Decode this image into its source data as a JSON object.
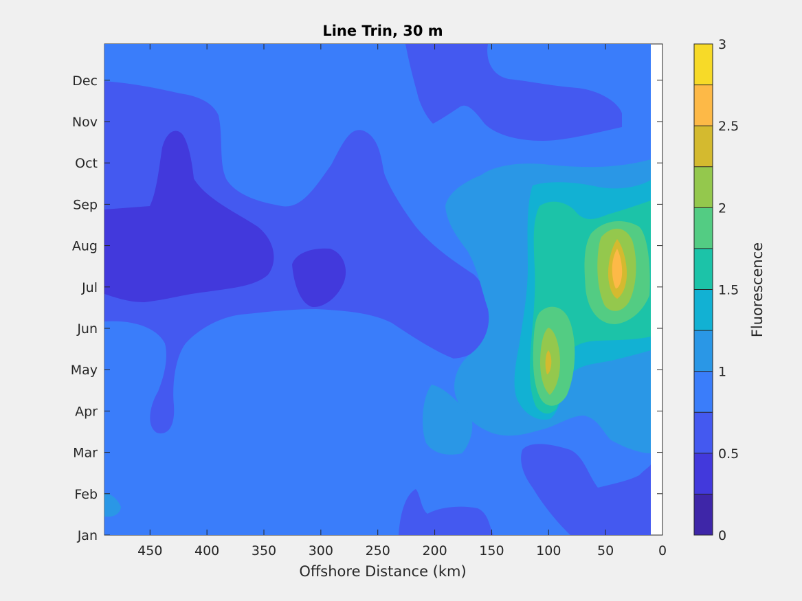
{
  "chart_data": {
    "type": "filled-contour",
    "title": "Line Trin, 30 m",
    "xlabel": "Offshore Distance (km)",
    "ylabel": "",
    "x_reversed": true,
    "xlim": [
      490,
      0
    ],
    "x_ticks": [
      450,
      400,
      350,
      300,
      250,
      200,
      150,
      100,
      50,
      0
    ],
    "y_ticks": [
      "Jan",
      "Feb",
      "Mar",
      "Apr",
      "May",
      "Jun",
      "Jul",
      "Aug",
      "Sep",
      "Oct",
      "Nov",
      "Dec"
    ],
    "colorbar": {
      "label": "Fluorescence",
      "range": [
        0,
        3
      ],
      "tick_values": [
        0,
        0.5,
        1,
        1.5,
        2,
        2.5,
        3
      ],
      "tick_labels": [
        "0",
        "0.5",
        "1",
        "1.5",
        "2",
        "2.5",
        "3"
      ],
      "levels": [
        0,
        0.25,
        0.5,
        0.75,
        1,
        1.25,
        1.5,
        1.75,
        2,
        2.25,
        2.5,
        2.75,
        3
      ],
      "colors": [
        "#3e26a8",
        "#4239dc",
        "#4459f0",
        "#3a7dfa",
        "#2a97e6",
        "#12b1d3",
        "#1cc3a8",
        "#53cc83",
        "#94c84d",
        "#d4ba2f",
        "#fdb947",
        "#f7da28"
      ]
    },
    "regions": [
      {
        "feature": "background",
        "level": 0.75
      },
      {
        "feature": "low_west_band",
        "level": 0.5
      },
      {
        "feature": "low_west_core",
        "level": 0.25
      },
      {
        "feature": "low_mid_core",
        "level": 0.25
      },
      {
        "feature": "low_northeast",
        "level": 0.5
      },
      {
        "feature": "low_south_mid",
        "level": 0.5
      },
      {
        "feature": "low_south_east",
        "level": 0.5
      },
      {
        "feature": "nearshore_bloom_1.0",
        "level": 1.0
      },
      {
        "feature": "nearshore_bloom_1.25",
        "level": 1.25
      },
      {
        "feature": "nearshore_bloom_1.5",
        "level": 1.5
      },
      {
        "feature": "peak_100km_may_1.75",
        "level": 1.75
      },
      {
        "feature": "peak_100km_may_2.0",
        "level": 2.0
      },
      {
        "feature": "peak_100km_may_2.25",
        "level": 2.25
      },
      {
        "feature": "peak_40km_jul_1.75",
        "level": 1.75
      },
      {
        "feature": "peak_40km_jul_2.0",
        "level": 2.0
      },
      {
        "feature": "peak_40km_jul_2.25",
        "level": 2.25
      },
      {
        "feature": "peak_40km_jul_2.5",
        "level": 2.5
      },
      {
        "feature": "patch_170km_apr",
        "level": 1.0
      },
      {
        "feature": "patch_480km_feb",
        "level": 1.0
      }
    ]
  }
}
